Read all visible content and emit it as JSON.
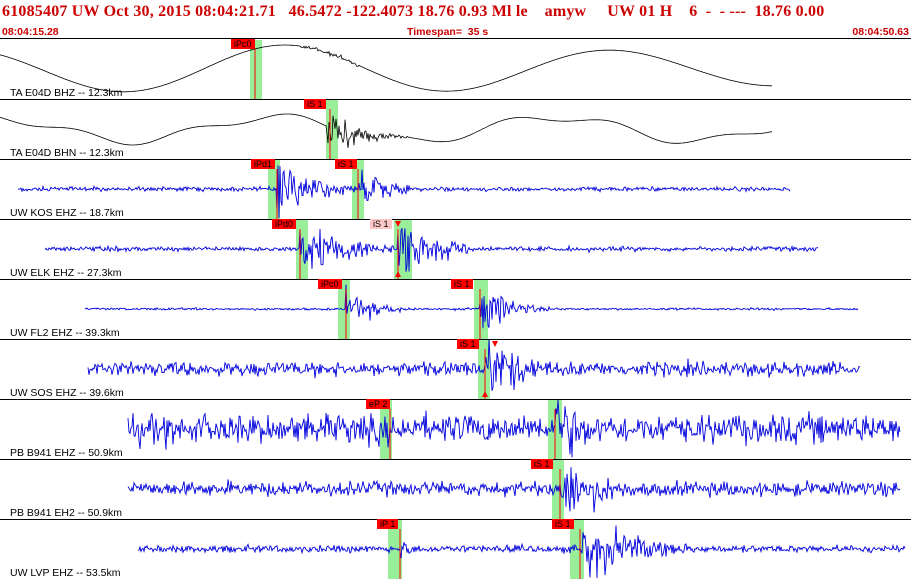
{
  "header": {
    "title": "61085407 UW Oct 30, 2015 08:04:21.71   46.5472 -122.4073 18.76 0.93 Ml le    amyw     UW 01 H    6  -  - ---  18.76 0.00",
    "start_time": "08:04:15.28",
    "timespan": "Timespan=  35 s",
    "end_time": "08:04:50.63"
  },
  "colors": {
    "header_text": "#cc0000",
    "trace_blue": "#0000dd",
    "trace_black": "#000000",
    "pick_window": "#99ee99",
    "pick_flag": "#ff0000",
    "pick_flag_light": "#ffc8c8"
  },
  "traces": [
    {
      "label": "TA E04D BHZ -- 12.3km",
      "picks": [
        {
          "text": "iPc0"
        }
      ]
    },
    {
      "label": "TA E04D BHN -- 12.3km",
      "picks": [
        {
          "text": "iS 1"
        }
      ]
    },
    {
      "label": "UW KOS EHZ -- 18.7km",
      "picks": [
        {
          "text": "iPd1"
        },
        {
          "text": "iS 1"
        }
      ]
    },
    {
      "label": "UW ELK EHZ -- 27.3km",
      "picks": [
        {
          "text": "iPd0"
        },
        {
          "text": "iS 1"
        }
      ]
    },
    {
      "label": "UW FL2 EHZ -- 39.3km",
      "picks": [
        {
          "text": "iPc0"
        },
        {
          "text": "iS 1"
        }
      ]
    },
    {
      "label": "UW SOS EHZ -- 39.6km",
      "picks": [
        {
          "text": "iS 1"
        }
      ]
    },
    {
      "label": "PB B941 EHZ -- 50.9km",
      "picks": [
        {
          "text": "eP 2"
        }
      ]
    },
    {
      "label": "PB B941 EH2 -- 50.9km",
      "picks": [
        {
          "text": "iS 1"
        }
      ]
    },
    {
      "label": "UW LVP EHZ -- 53.5km",
      "picks": [
        {
          "text": "iP 1"
        },
        {
          "text": "iS 1"
        }
      ]
    }
  ]
}
